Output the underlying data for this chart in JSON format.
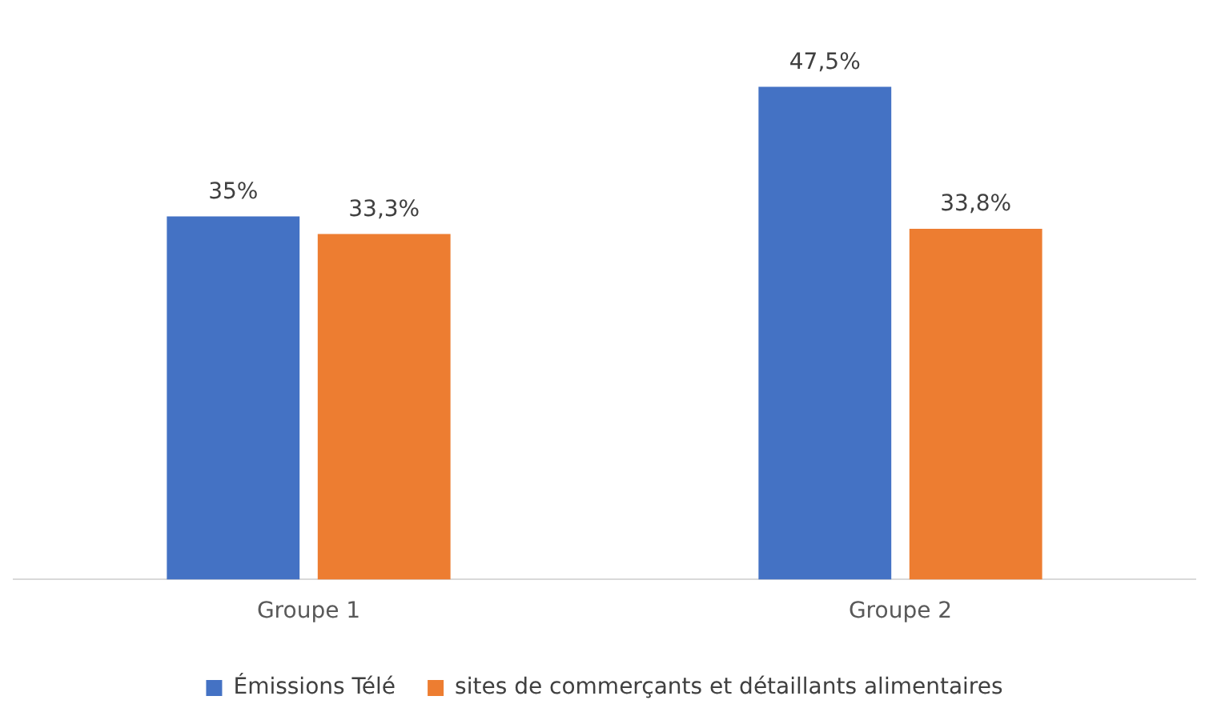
{
  "chart_data": {
    "type": "bar",
    "categories": [
      "Groupe 1",
      "Groupe 2"
    ],
    "series": [
      {
        "name": "Émissions Télé",
        "color": "#4472c4",
        "values": [
          35,
          47.5
        ],
        "value_labels": [
          "35%",
          "47,5%"
        ]
      },
      {
        "name": "sites de commerçants et détaillants alimentaires",
        "color": "#ed7d31",
        "values": [
          33.3,
          33.8
        ],
        "value_labels": [
          "33,3%",
          "33,8%"
        ]
      }
    ],
    "legend": "bottom"
  }
}
